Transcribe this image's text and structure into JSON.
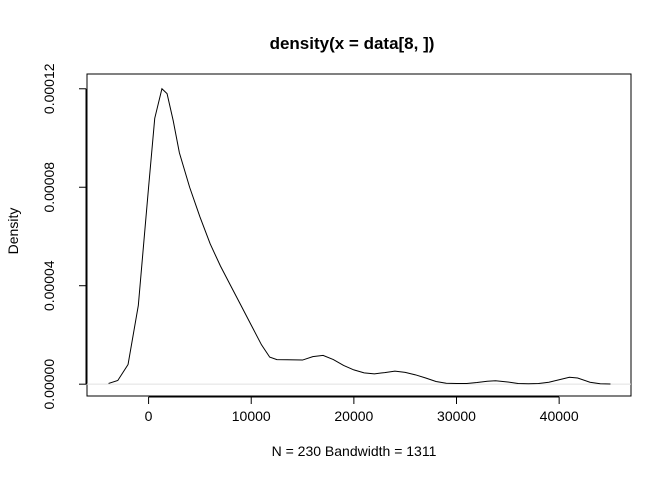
{
  "chart_data": {
    "type": "line",
    "title": "density(x = data[8, ])",
    "xlabel": "N = 230   Bandwidth = 1311",
    "ylabel": "Density",
    "xlim": [
      -6000,
      47000
    ],
    "ylim": [
      -4.8e-06,
      0.000126
    ],
    "x_ticks": [
      0,
      10000,
      20000,
      30000,
      40000
    ],
    "x_tick_labels": [
      "0",
      "10000",
      "20000",
      "30000",
      "40000"
    ],
    "y_ticks": [
      0.0,
      4e-05,
      8e-05,
      0.00012
    ],
    "y_tick_labels": [
      "0.00000",
      "0.00004",
      "0.00008",
      "0.00012"
    ],
    "grid": false,
    "baseline": 0,
    "baseline_color": "#e0e0e0",
    "line_color": "#000000",
    "series": [
      {
        "x": [
          -3900,
          -3000,
          -2000,
          -1000,
          0,
          600,
          1300,
          1800,
          2400,
          3000,
          4000,
          5000,
          6000,
          7000,
          8000,
          9000,
          10000,
          11000,
          11800,
          12500,
          13500,
          15000,
          16000,
          17000,
          18000,
          19000,
          20000,
          21000,
          22000,
          23000,
          24000,
          25000,
          26000,
          27000,
          28000,
          29000,
          30000,
          31000,
          32000,
          33000,
          33800,
          35000,
          36000,
          37000,
          38000,
          39000,
          40000,
          41000,
          41800,
          43000,
          44000,
          45000
        ],
        "y": [
          3e-07,
          1.5e-06,
          8e-06,
          3.2e-05,
          8e-05,
          0.000108,
          0.00012,
          0.000118,
          0.000107,
          9.4e-05,
          8e-05,
          6.8e-05,
          5.7e-05,
          4.8e-05,
          4e-05,
          3.2e-05,
          2.4e-05,
          1.6e-05,
          1.1e-05,
          1e-05,
          9.9e-06,
          9.8e-06,
          1.12e-05,
          1.17e-05,
          1e-05,
          7.6e-06,
          5.8e-06,
          4.6e-06,
          4.2e-06,
          4.7e-06,
          5.3e-06,
          4.8e-06,
          3.8e-06,
          2.5e-06,
          1.1e-06,
          4e-07,
          3e-07,
          3e-07,
          7e-07,
          1.2e-06,
          1.4e-06,
          9e-07,
          3e-07,
          2e-07,
          3e-07,
          8e-07,
          1.8e-06,
          2.8e-06,
          2.5e-06,
          8e-07,
          2e-07,
          1e-07
        ]
      }
    ]
  }
}
